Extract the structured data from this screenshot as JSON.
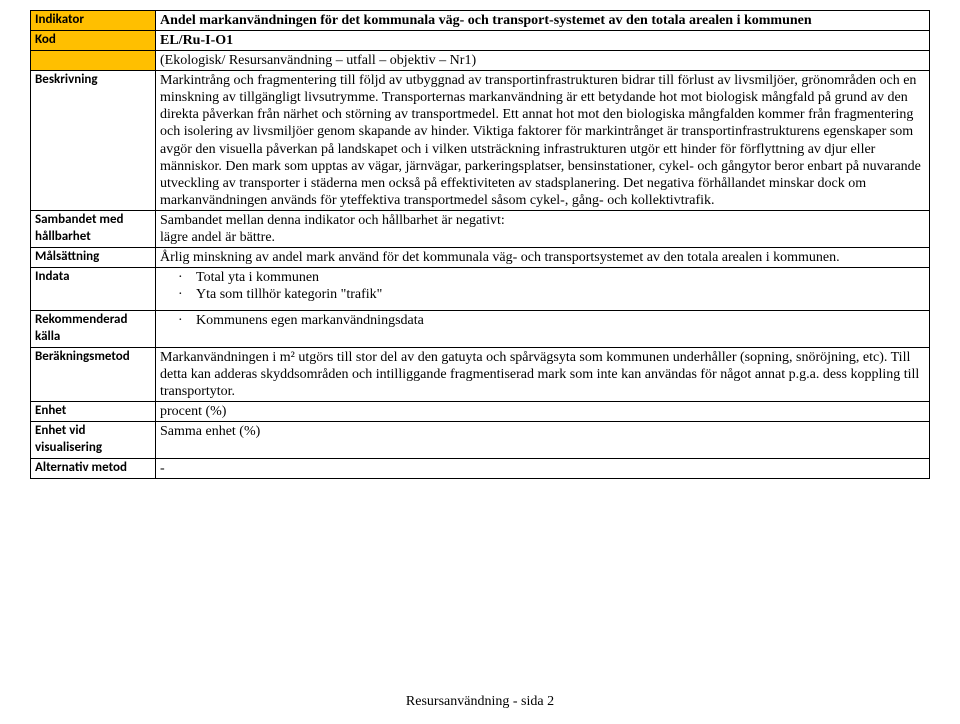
{
  "table": {
    "rows": [
      {
        "label": "Indikator",
        "highlight": true,
        "bold": true,
        "content": "Andel markanvändningen för det kommunala väg- och transport-systemet av den totala arealen i kommunen"
      },
      {
        "label": "Kod",
        "highlight": true,
        "bold": true,
        "content": "EL/Ru-I-O1"
      },
      {
        "label": "",
        "highlight": true,
        "bold": false,
        "content": "(Ekologisk/ Resursanvändning – utfall – objektiv – Nr1)"
      },
      {
        "label": "Beskrivning",
        "highlight": false,
        "bold": false,
        "content": "Markintrång och fragmentering till följd av utbyggnad av transportinfrastrukturen bidrar till förlust av livsmiljöer, grönområden och en minskning av tillgängligt livsutrymme. Transporternas markanvändning är ett betydande hot mot biologisk mångfald på grund av den direkta påverkan från närhet och störning av transportmedel. Ett annat hot mot den biologiska mångfalden kommer från fragmentering och isolering av livsmiljöer genom skapande av hinder. Viktiga faktorer för markintrånget är transportinfrastrukturens egenskaper som avgör den visuella påverkan på landskapet och i vilken utsträckning infrastrukturen utgör ett hinder för förflyttning av djur eller människor. Den mark som upptas av vägar, järnvägar, parkeringsplatser, bensinstationer, cykel- och gångytor beror enbart på nuvarande utveckling av transporter i städerna men också på effektiviteten av stadsplanering. Det negativa förhållandet minskar dock om markanvändningen används för yteffektiva transportmedel såsom cykel-, gång- och kollektivtrafik."
      },
      {
        "label": "Sambandet med hållbarhet",
        "highlight": false,
        "bold": false,
        "content": "Sambandet mellan denna indikator och hållbarhet är negativt:\nlägre andel är bättre."
      },
      {
        "label": "Målsättning",
        "highlight": false,
        "bold": false,
        "content": "Årlig minskning av andel mark använd för det kommunala väg- och transportsystemet av den totala arealen i kommunen."
      },
      {
        "label": "Indata",
        "highlight": false,
        "bold": false,
        "bullets": [
          "Total yta i kommunen",
          "Yta som tillhör kategorin \"trafik\""
        ]
      },
      {
        "label": "Rekommenderad källa",
        "highlight": false,
        "bold": false,
        "bullets": [
          "Kommunens egen markanvändningsdata"
        ]
      },
      {
        "label": "Beräkningsmetod",
        "highlight": false,
        "bold": false,
        "content": "Markanvändningen i m² utgörs till stor del av den gatuyta och spårvägsyta som kommunen underhåller (sopning, snöröjning, etc). Till detta kan adderas skyddsområden och intilliggande fragmentiserad mark som inte kan användas för något annat p.g.a. dess koppling till transportytor."
      },
      {
        "label": "Enhet",
        "highlight": false,
        "bold": false,
        "content": "procent (%)"
      },
      {
        "label": "Enhet vid visualisering",
        "highlight": false,
        "bold": false,
        "content": "Samma enhet (%)"
      },
      {
        "label": "Alternativ metod",
        "highlight": false,
        "bold": false,
        "content": "-"
      }
    ]
  },
  "footer": "Resursanvändning - sida 2"
}
